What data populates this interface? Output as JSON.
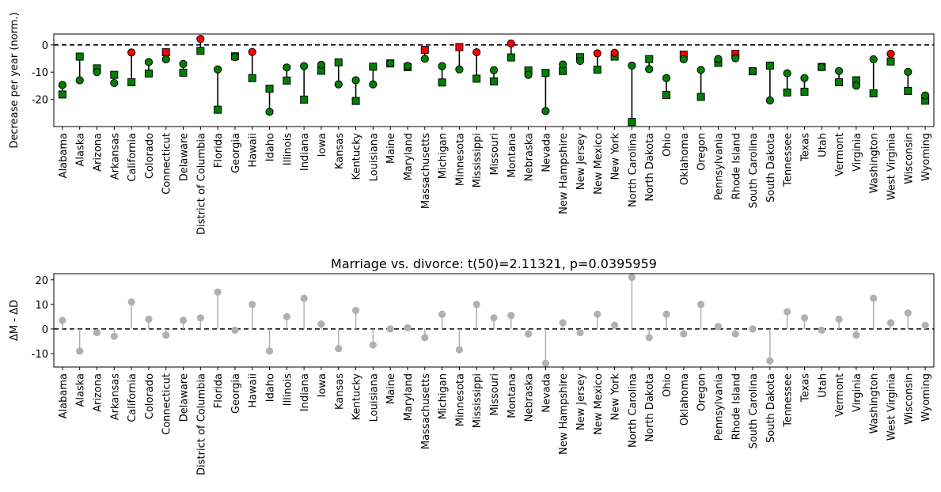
{
  "chart_data": [
    {
      "type": "scatter",
      "ylabel": "Decrease per year (norm.)",
      "ylim": [
        -30,
        4
      ],
      "yticks": [
        0,
        -10,
        -20
      ],
      "reference_line": 0,
      "categories": [
        "Alabama",
        "Alaska",
        "Arizona",
        "Arkansas",
        "California",
        "Colorado",
        "Connecticut",
        "Delaware",
        "District of Columbia",
        "Florida",
        "Georgia",
        "Hawaii",
        "Idaho",
        "Illinois",
        "Indiana",
        "Iowa",
        "Kansas",
        "Kentucky",
        "Louisiana",
        "Maine",
        "Maryland",
        "Massachusetts",
        "Michigan",
        "Minnesota",
        "Mississippi",
        "Missouri",
        "Montana",
        "Nebraska",
        "Nevada",
        "New Hampshire",
        "New Jersey",
        "New Mexico",
        "New York",
        "North Carolina",
        "North Dakota",
        "Ohio",
        "Oklahoma",
        "Oregon",
        "Pennsylvania",
        "Rhode Island",
        "South Carolina",
        "South Dakota",
        "Tennessee",
        "Texas",
        "Utah",
        "Vermont",
        "Virginia",
        "Washington",
        "West Virginia",
        "Wisconsin",
        "Wyoming"
      ],
      "circle_values": [
        -14.7,
        -13.0,
        -10.0,
        -14.0,
        -2.8,
        -6.3,
        -5.3,
        -7.0,
        2.2,
        -9.0,
        -4.5,
        -2.6,
        -24.6,
        -8.3,
        -7.8,
        -7.3,
        -14.5,
        -13.0,
        -14.5,
        -6.8,
        -7.7,
        -5.1,
        -7.8,
        -9.0,
        -2.7,
        -9.3,
        0.5,
        -11.0,
        -24.3,
        -7.2,
        -5.9,
        -3.1,
        -2.9,
        -7.6,
        -8.9,
        -12.2,
        -5.3,
        -9.2,
        -5.2,
        -4.9,
        -9.6,
        -20.4,
        -10.4,
        -12.2,
        -8.2,
        -9.6,
        -15.0,
        -5.3,
        -3.3,
        -9.9,
        -18.6
      ],
      "square_values": [
        -18.2,
        -4.3,
        -8.6,
        -11.0,
        -13.7,
        -10.5,
        -2.7,
        -10.2,
        -2.2,
        -23.8,
        -4.2,
        -12.2,
        -16.1,
        -13.1,
        -20.1,
        -9.5,
        -6.4,
        -20.6,
        -8.0,
        -6.8,
        -8.2,
        -1.8,
        -13.8,
        -0.8,
        -12.4,
        -13.4,
        -4.6,
        -9.4,
        -10.3,
        -9.6,
        -4.5,
        -9.1,
        -4.3,
        -28.3,
        -5.2,
        -18.4,
        -3.6,
        -19.1,
        -6.6,
        -3.3,
        -9.7,
        -7.6,
        -17.5,
        -17.2,
        -8.1,
        -13.7,
        -13.0,
        -17.8,
        -6.1,
        -16.9,
        -20.5
      ],
      "circle_red": [
        "California",
        "District of Columbia",
        "Hawaii",
        "Mississippi",
        "Montana",
        "New Mexico",
        "New York",
        "West Virginia"
      ],
      "square_red": [
        "Connecticut",
        "Massachusetts",
        "Minnesota",
        "Oklahoma",
        "Rhode Island"
      ],
      "colors": {
        "green": "#008000",
        "red": "#ff0000",
        "stem": "#000000"
      }
    },
    {
      "type": "stem",
      "title": "Marriage vs. divorce: t(50)=2.11321, p=0.0395959",
      "ylabel": "ΔM - ΔD",
      "ylim": [
        -15.5,
        22.5
      ],
      "yticks": [
        20,
        10,
        0,
        -10
      ],
      "reference_line": 0,
      "categories": [
        "Alabama",
        "Alaska",
        "Arizona",
        "Arkansas",
        "California",
        "Colorado",
        "Connecticut",
        "Delaware",
        "District of Columbia",
        "Florida",
        "Georgia",
        "Hawaii",
        "Idaho",
        "Illinois",
        "Indiana",
        "Iowa",
        "Kansas",
        "Kentucky",
        "Louisiana",
        "Maine",
        "Maryland",
        "Massachusetts",
        "Michigan",
        "Minnesota",
        "Mississippi",
        "Missouri",
        "Montana",
        "Nebraska",
        "Nevada",
        "New Hampshire",
        "New Jersey",
        "New Mexico",
        "New York",
        "North Carolina",
        "North Dakota",
        "Ohio",
        "Oklahoma",
        "Oregon",
        "Pennsylvania",
        "Rhode Island",
        "South Carolina",
        "South Dakota",
        "Tennessee",
        "Texas",
        "Utah",
        "Vermont",
        "Virginia",
        "Washington",
        "West Virginia",
        "Wisconsin",
        "Wyoming"
      ],
      "values": [
        3.5,
        -9.0,
        -1.5,
        -3.0,
        11.0,
        4.0,
        -2.5,
        3.5,
        4.5,
        15.0,
        -0.5,
        10.0,
        -9.0,
        5.0,
        12.5,
        2.0,
        -8.0,
        7.5,
        -6.5,
        0.0,
        0.5,
        -3.5,
        6.0,
        -8.5,
        10.0,
        4.5,
        5.5,
        -2.0,
        -14.0,
        2.5,
        -1.5,
        6.0,
        1.5,
        21.0,
        -3.5,
        6.0,
        -2.0,
        10.0,
        1.0,
        -2.0,
        0.0,
        -13.0,
        7.0,
        4.5,
        -0.5,
        4.0,
        -2.5,
        12.5,
        2.5,
        6.5,
        1.5
      ],
      "colors": {
        "marker": "#b0b0b0",
        "stem": "#b0b0b0"
      }
    }
  ]
}
